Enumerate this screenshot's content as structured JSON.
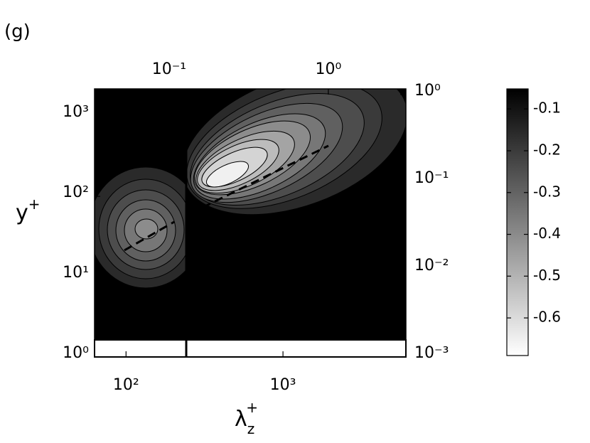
{
  "chart_data": {
    "type": "contour",
    "panel_label": "(g)",
    "x_label": {
      "base": "λ",
      "sub": "z",
      "sup": "+"
    },
    "y_label": {
      "base": "y",
      "sup": "+"
    },
    "xscale": "log",
    "yscale": "log",
    "xlim": [
      63,
      6070
    ],
    "xticks": [
      {
        "value": 100,
        "label": "10²"
      },
      {
        "value": 1000,
        "label": "10³"
      }
    ],
    "x2lim": [
      0.034,
      3.07
    ],
    "x2ticks": [
      {
        "value": 0.1,
        "label": "10⁻¹"
      },
      {
        "value": 1,
        "label": "10⁰"
      }
    ],
    "ylim": [
      1,
      2180
    ],
    "yticks": [
      {
        "value": 1,
        "label": "10⁰"
      },
      {
        "value": 10,
        "label": "10¹"
      },
      {
        "value": 100,
        "label": "10²"
      },
      {
        "value": 1000,
        "label": "10³"
      }
    ],
    "y2lim": [
      0.001,
      1.16
    ],
    "y2ticks": [
      {
        "value": 0.001,
        "label": "10⁻³"
      },
      {
        "value": 0.01,
        "label": "10⁻²"
      },
      {
        "value": 0.1,
        "label": "10⁻¹"
      },
      {
        "value": 1,
        "label": "10⁰"
      }
    ],
    "colorbar": {
      "clim": [
        -0.69,
        -0.052
      ],
      "ticks": [
        -0.1,
        -0.2,
        -0.3,
        -0.4,
        -0.5,
        -0.6
      ],
      "colormap": "gray"
    }
  }
}
